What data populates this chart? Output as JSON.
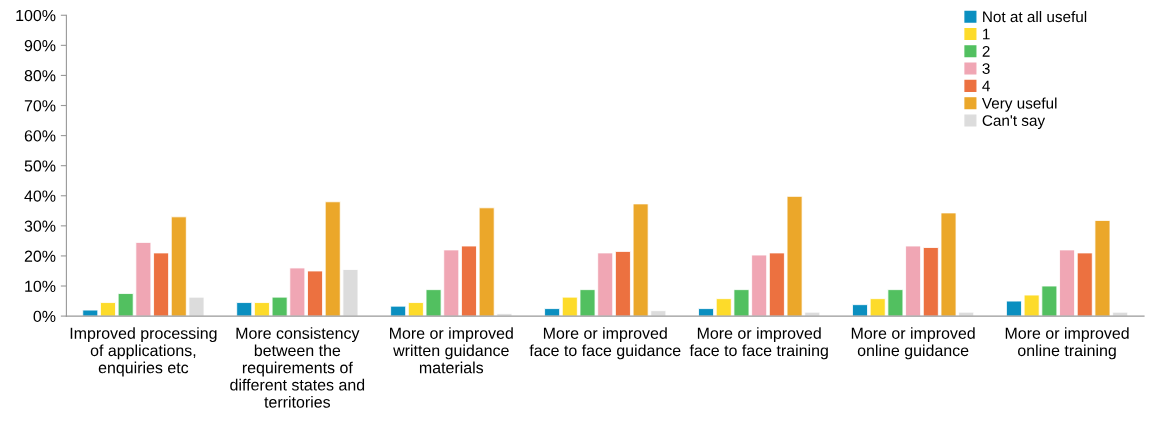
{
  "chart_data": {
    "type": "bar",
    "categories": [
      "Improved processing\nof applications,\nenquiries etc",
      "More consistency\nbetween the\nrequirements of\ndifferent states and\nterritories",
      "More or improved\nwritten guidance\nmaterials",
      "More or improved\nface to face guidance",
      "More or improved\nface to face training",
      "More or improved\nonline guidance",
      "More or improved\nonline training"
    ],
    "series": [
      {
        "name": "Not at all useful",
        "color": "#0a8fc0",
        "values": [
          2,
          4.5,
          3.3,
          2.5,
          2.5,
          3.8,
          5
        ]
      },
      {
        "name": "1",
        "color": "#fddb2a",
        "values": [
          4.5,
          4.5,
          4.5,
          6.3,
          5.8,
          5.8,
          7
        ]
      },
      {
        "name": "2",
        "color": "#52c060",
        "values": [
          7.5,
          6.3,
          8.8,
          8.8,
          8.8,
          8.8,
          10
        ]
      },
      {
        "name": "3",
        "color": "#f0a6b4",
        "values": [
          24.5,
          16,
          22,
          21,
          20.3,
          23.3,
          22
        ]
      },
      {
        "name": "4",
        "color": "#ec7140",
        "values": [
          21,
          15,
          23.3,
          21.5,
          21,
          22.8,
          21
        ]
      },
      {
        "name": "Very useful",
        "color": "#eba72a",
        "values": [
          33,
          38,
          36,
          37.3,
          39.8,
          34.3,
          31.8
        ]
      },
      {
        "name": "Can't say",
        "color": "#dcdcdc",
        "values": [
          6.3,
          15.5,
          0.8,
          1.8,
          1.3,
          1.3,
          1.3
        ]
      }
    ],
    "ylim": [
      0,
      100
    ],
    "yticks": [
      {
        "value": 0,
        "label": "0%"
      },
      {
        "value": 10,
        "label": "10%"
      },
      {
        "value": 20,
        "label": "20%"
      },
      {
        "value": 30,
        "label": "30%"
      },
      {
        "value": 40,
        "label": "40%"
      },
      {
        "value": 50,
        "label": "50%"
      },
      {
        "value": 60,
        "label": "60%"
      },
      {
        "value": 70,
        "label": "70%"
      },
      {
        "value": 80,
        "label": "80%"
      },
      {
        "value": 90,
        "label": "90%"
      },
      {
        "value": 100,
        "label": "100%"
      }
    ],
    "grid": false,
    "legend": "top right"
  }
}
